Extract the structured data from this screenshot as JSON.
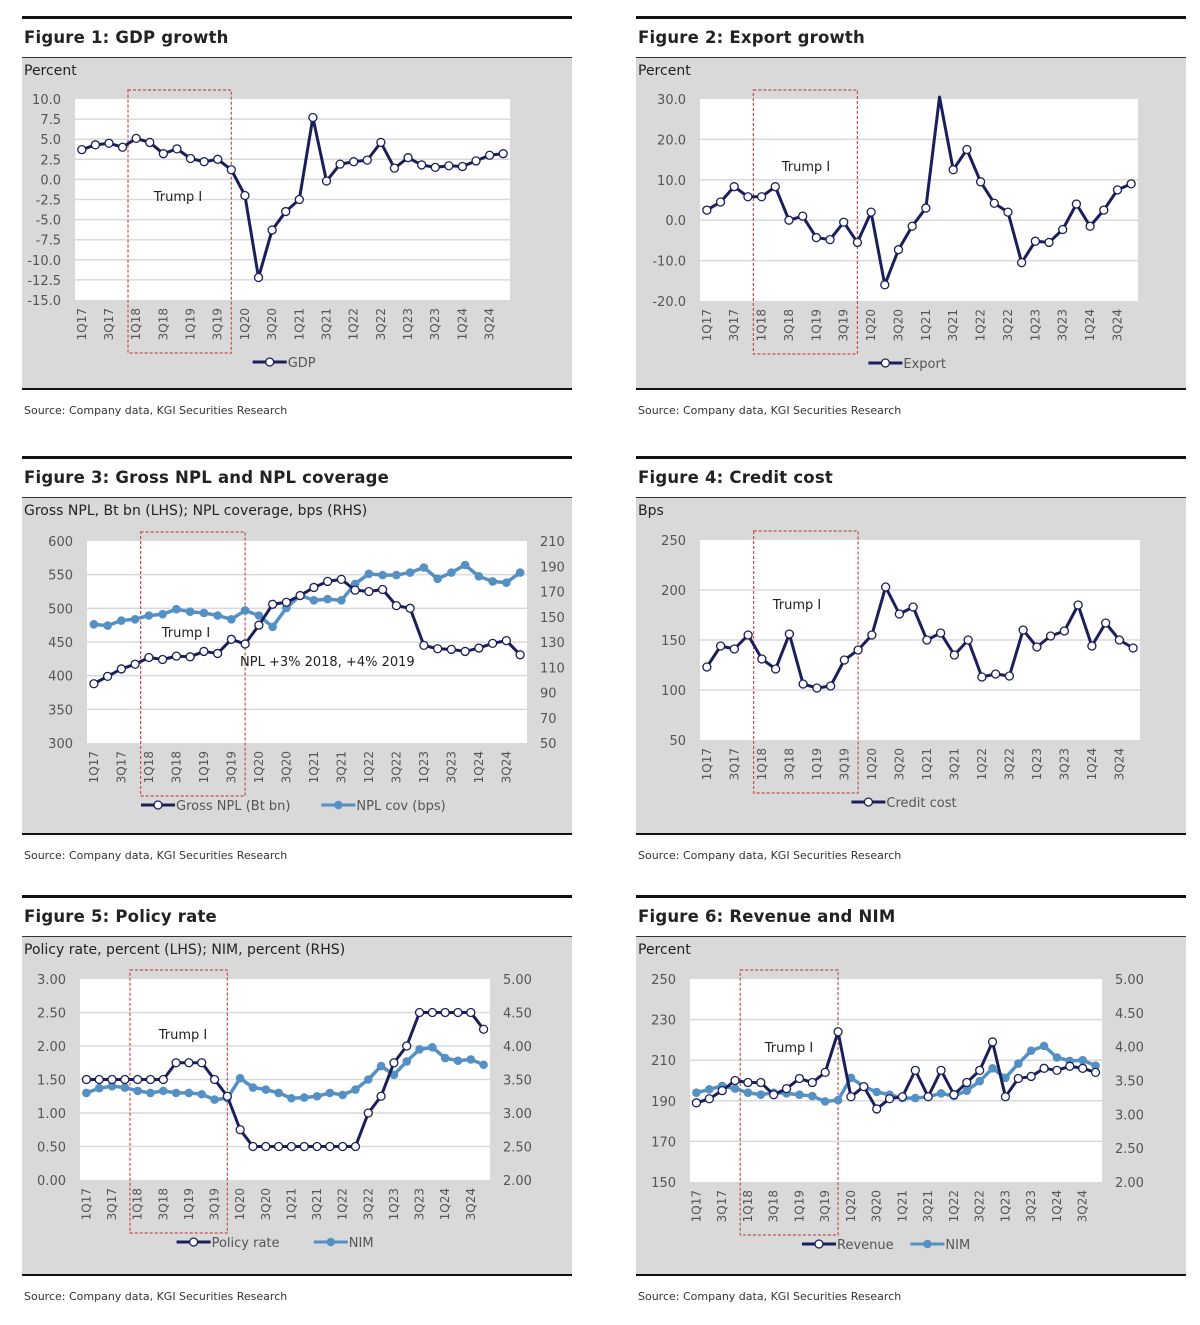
{
  "source_text": "Source: Company data, KGI Securities Research",
  "colors": {
    "navy": "#1a1f5a",
    "blue": "#5590c4",
    "panel_bg": "#d9d9d9",
    "trump_box": "#c0504d"
  },
  "chart_data": [
    {
      "type": "line",
      "title": "Figure 1: GDP growth",
      "unit_label": "Percent",
      "categories": [
        "1Q17",
        "2Q17",
        "3Q17",
        "4Q17",
        "1Q18",
        "2Q18",
        "3Q18",
        "4Q18",
        "1Q19",
        "2Q19",
        "3Q19",
        "4Q19",
        "1Q20",
        "2Q20",
        "3Q20",
        "4Q20",
        "1Q21",
        "2Q21",
        "3Q21",
        "4Q21",
        "1Q22",
        "2Q22",
        "3Q22",
        "4Q22",
        "1Q23",
        "2Q23",
        "3Q23",
        "4Q23",
        "1Q24",
        "2Q24",
        "3Q24",
        "4Q24"
      ],
      "x_tick_labels": [
        "1Q17",
        "3Q17",
        "1Q18",
        "3Q18",
        "1Q19",
        "3Q19",
        "1Q20",
        "3Q20",
        "1Q21",
        "3Q21",
        "1Q22",
        "3Q22",
        "1Q23",
        "3Q23",
        "1Q24",
        "3Q24"
      ],
      "y_left": {
        "range": [
          -15,
          10
        ],
        "tick_labels": [
          "-15.0",
          "-12.5",
          "-10.0",
          "-7.5",
          "-5.0",
          "-2.5",
          "0.0",
          "2.5",
          "5.0",
          "7.5",
          "10.0"
        ]
      },
      "series": [
        {
          "name": "GDP",
          "axis": "left",
          "style": "navy",
          "values": [
            3.7,
            4.3,
            4.5,
            4.0,
            5.1,
            4.6,
            3.2,
            3.8,
            2.6,
            2.2,
            2.5,
            1.2,
            -2.0,
            -12.2,
            -6.3,
            -4.0,
            -2.5,
            7.7,
            -0.2,
            1.9,
            2.2,
            2.4,
            4.6,
            1.4,
            2.7,
            1.8,
            1.5,
            1.7,
            1.6,
            2.3,
            3.0,
            3.2
          ]
        }
      ],
      "highlight": {
        "label": "Trump I",
        "from": "1Q18",
        "to": "4Q19"
      },
      "annotations": [],
      "grid": true,
      "legend": "bottom"
    },
    {
      "type": "line",
      "title": "Figure 2: Export growth",
      "unit_label": "Percent",
      "categories": [
        "1Q17",
        "2Q17",
        "3Q17",
        "4Q17",
        "1Q18",
        "2Q18",
        "3Q18",
        "4Q18",
        "1Q19",
        "2Q19",
        "3Q19",
        "4Q19",
        "1Q20",
        "2Q20",
        "3Q20",
        "4Q20",
        "1Q21",
        "2Q21",
        "3Q21",
        "4Q21",
        "1Q22",
        "2Q22",
        "3Q22",
        "4Q22",
        "1Q23",
        "2Q23",
        "3Q23",
        "4Q23",
        "1Q24",
        "2Q24",
        "3Q24",
        "4Q24"
      ],
      "x_tick_labels": [
        "1Q17",
        "3Q17",
        "1Q18",
        "3Q18",
        "1Q19",
        "3Q19",
        "1Q20",
        "3Q20",
        "1Q21",
        "3Q21",
        "1Q22",
        "3Q22",
        "1Q23",
        "3Q23",
        "1Q24",
        "3Q24"
      ],
      "y_left": {
        "range": [
          -20,
          30
        ],
        "tick_labels": [
          "-20.0",
          "-10.0",
          "0.0",
          "10.0",
          "20.0",
          "30.0"
        ]
      },
      "series": [
        {
          "name": "Export",
          "axis": "left",
          "style": "navy",
          "values": [
            2.5,
            4.5,
            8.3,
            5.8,
            5.8,
            8.3,
            0.0,
            1.0,
            -4.3,
            -4.8,
            -0.5,
            -5.5,
            2.0,
            -16.0,
            -7.3,
            -1.5,
            3.0,
            30.5,
            12.5,
            17.5,
            9.5,
            4.2,
            2.0,
            -10.5,
            -5.2,
            -5.5,
            -2.3,
            4.0,
            -1.5,
            2.5,
            7.5,
            9.0
          ]
        }
      ],
      "highlight": {
        "label": "Trump I",
        "from": "1Q18",
        "to": "4Q19"
      },
      "annotations": [],
      "grid": true,
      "legend": "bottom"
    },
    {
      "type": "line",
      "title": "Figure 3: Gross NPL and NPL coverage",
      "unit_label": "Gross NPL, Bt bn (LHS); NPL coverage, bps (RHS)",
      "categories": [
        "1Q17",
        "2Q17",
        "3Q17",
        "4Q17",
        "1Q18",
        "2Q18",
        "3Q18",
        "4Q18",
        "1Q19",
        "2Q19",
        "3Q19",
        "4Q19",
        "1Q20",
        "2Q20",
        "3Q20",
        "4Q20",
        "1Q21",
        "2Q21",
        "3Q21",
        "4Q21",
        "1Q22",
        "2Q22",
        "3Q22",
        "4Q22",
        "1Q23",
        "2Q23",
        "3Q23",
        "4Q23",
        "1Q24",
        "2Q24",
        "3Q24",
        "4Q24"
      ],
      "x_tick_labels": [
        "1Q17",
        "3Q17",
        "1Q18",
        "3Q18",
        "1Q19",
        "3Q19",
        "1Q20",
        "3Q20",
        "1Q21",
        "3Q21",
        "1Q22",
        "3Q22",
        "1Q23",
        "3Q23",
        "1Q24",
        "3Q24"
      ],
      "y_left": {
        "range": [
          300,
          600
        ],
        "tick_labels": [
          "300",
          "350",
          "400",
          "450",
          "500",
          "550",
          "600"
        ]
      },
      "y_right": {
        "range": [
          50,
          210
        ],
        "tick_labels": [
          "50",
          "70",
          "90",
          "110",
          "130",
          "150",
          "170",
          "190",
          "210"
        ]
      },
      "series": [
        {
          "name": "Gross NPL (Bt bn)",
          "axis": "left",
          "style": "navy",
          "values": [
            388,
            399,
            410,
            417,
            427,
            424,
            429,
            428,
            436,
            433,
            454,
            447,
            475,
            506,
            509,
            519,
            531,
            540,
            543,
            527,
            525,
            528,
            504,
            500,
            445,
            440,
            439,
            436,
            441,
            448,
            452,
            431
          ]
        },
        {
          "name": "NPL cov (bps)",
          "axis": "right",
          "style": "blue",
          "values": [
            144,
            143,
            147,
            148,
            151,
            152,
            156,
            154,
            153,
            151,
            148,
            155,
            151,
            142,
            157,
            167,
            163,
            164,
            163,
            176,
            184,
            183,
            183,
            185,
            189,
            180,
            185,
            191,
            182,
            178,
            177,
            185
          ]
        }
      ],
      "highlight": {
        "label": "Trump I",
        "from": "1Q18",
        "to": "4Q19"
      },
      "annotations": [
        "NPL +3% 2018, +4% 2019"
      ],
      "grid": true,
      "legend": "bottom"
    },
    {
      "type": "line",
      "title": "Figure 4: Credit cost",
      "unit_label": "Bps",
      "categories": [
        "1Q17",
        "2Q17",
        "3Q17",
        "4Q17",
        "1Q18",
        "2Q18",
        "3Q18",
        "4Q18",
        "1Q19",
        "2Q19",
        "3Q19",
        "4Q19",
        "1Q20",
        "2Q20",
        "3Q20",
        "4Q20",
        "1Q21",
        "2Q21",
        "3Q21",
        "4Q21",
        "1Q22",
        "2Q22",
        "3Q22",
        "4Q22",
        "1Q23",
        "2Q23",
        "3Q23",
        "4Q23",
        "1Q24",
        "2Q24",
        "3Q24",
        "4Q24"
      ],
      "x_tick_labels": [
        "1Q17",
        "3Q17",
        "1Q18",
        "3Q18",
        "1Q19",
        "3Q19",
        "1Q20",
        "3Q20",
        "1Q21",
        "3Q21",
        "1Q22",
        "3Q22",
        "1Q23",
        "3Q23",
        "1Q24",
        "3Q24"
      ],
      "y_left": {
        "range": [
          50,
          250
        ],
        "tick_labels": [
          "50",
          "100",
          "150",
          "200",
          "250"
        ]
      },
      "series": [
        {
          "name": "Credit cost",
          "axis": "left",
          "style": "navy",
          "values": [
            123,
            144,
            141,
            155,
            131,
            121,
            156,
            106,
            102,
            104,
            130,
            140,
            155,
            203,
            176,
            183,
            150,
            157,
            135,
            150,
            113,
            116,
            114,
            160,
            143,
            154,
            159,
            185,
            144,
            167,
            150,
            142
          ]
        }
      ],
      "highlight": {
        "label": "Trump I",
        "from": "1Q18",
        "to": "4Q19"
      },
      "annotations": [],
      "grid": true,
      "legend": "bottom"
    },
    {
      "type": "line",
      "title": "Figure 5: Policy rate",
      "unit_label": "Policy rate, percent (LHS); NIM, percent (RHS)",
      "categories": [
        "1Q17",
        "2Q17",
        "3Q17",
        "4Q17",
        "1Q18",
        "2Q18",
        "3Q18",
        "4Q18",
        "1Q19",
        "2Q19",
        "3Q19",
        "4Q19",
        "1Q20",
        "2Q20",
        "3Q20",
        "4Q20",
        "1Q21",
        "2Q21",
        "3Q21",
        "4Q21",
        "1Q22",
        "2Q22",
        "3Q22",
        "4Q22",
        "1Q23",
        "2Q23",
        "3Q23",
        "4Q23",
        "1Q24",
        "2Q24",
        "3Q24",
        "4Q24"
      ],
      "x_tick_labels": [
        "1Q17",
        "3Q17",
        "1Q18",
        "3Q18",
        "1Q19",
        "3Q19",
        "1Q20",
        "3Q20",
        "1Q21",
        "3Q21",
        "1Q22",
        "3Q22",
        "1Q23",
        "3Q23",
        "1Q24",
        "3Q24"
      ],
      "y_left": {
        "range": [
          0,
          3
        ],
        "tick_labels": [
          "0.00",
          "0.50",
          "1.00",
          "1.50",
          "2.00",
          "2.50",
          "3.00"
        ]
      },
      "y_right": {
        "range": [
          2,
          5
        ],
        "tick_labels": [
          "2.00",
          "2.50",
          "3.00",
          "3.50",
          "4.00",
          "4.50",
          "5.00"
        ]
      },
      "series": [
        {
          "name": "Policy rate",
          "axis": "left",
          "style": "navy",
          "values": [
            1.5,
            1.5,
            1.5,
            1.5,
            1.5,
            1.5,
            1.5,
            1.75,
            1.75,
            1.75,
            1.5,
            1.25,
            0.75,
            0.5,
            0.5,
            0.5,
            0.5,
            0.5,
            0.5,
            0.5,
            0.5,
            0.5,
            1.0,
            1.25,
            1.75,
            2.0,
            2.5,
            2.5,
            2.5,
            2.5,
            2.5,
            2.25
          ]
        },
        {
          "name": "NIM",
          "axis": "right",
          "style": "blue",
          "values": [
            3.3,
            3.37,
            3.4,
            3.38,
            3.33,
            3.3,
            3.33,
            3.3,
            3.3,
            3.28,
            3.2,
            3.22,
            3.52,
            3.38,
            3.35,
            3.3,
            3.22,
            3.23,
            3.25,
            3.3,
            3.27,
            3.35,
            3.5,
            3.7,
            3.57,
            3.77,
            3.95,
            3.98,
            3.82,
            3.78,
            3.8,
            3.72
          ]
        }
      ],
      "highlight": {
        "label": "Trump I",
        "from": "1Q18",
        "to": "4Q19"
      },
      "annotations": [],
      "grid": true,
      "legend": "bottom"
    },
    {
      "type": "line",
      "title": "Figure 6: Revenue and NIM",
      "unit_label": "Percent",
      "categories": [
        "1Q17",
        "2Q17",
        "3Q17",
        "4Q17",
        "1Q18",
        "2Q18",
        "3Q18",
        "4Q18",
        "1Q19",
        "2Q19",
        "3Q19",
        "4Q19",
        "1Q20",
        "2Q20",
        "3Q20",
        "4Q20",
        "1Q21",
        "2Q21",
        "3Q21",
        "4Q21",
        "1Q22",
        "2Q22",
        "3Q22",
        "4Q22",
        "1Q23",
        "2Q23",
        "3Q23",
        "4Q23",
        "1Q24",
        "2Q24",
        "3Q24",
        "4Q24"
      ],
      "x_tick_labels": [
        "1Q17",
        "3Q17",
        "1Q18",
        "3Q18",
        "1Q19",
        "3Q19",
        "1Q20",
        "3Q20",
        "1Q21",
        "3Q21",
        "1Q22",
        "3Q22",
        "1Q23",
        "3Q23",
        "1Q24",
        "3Q24"
      ],
      "y_left": {
        "range": [
          150,
          250
        ],
        "tick_labels": [
          "150",
          "170",
          "190",
          "210",
          "230",
          "250"
        ]
      },
      "y_right": {
        "range": [
          2,
          5
        ],
        "tick_labels": [
          "2.00",
          "2.50",
          "3.00",
          "3.50",
          "4.00",
          "4.50",
          "5.00"
        ]
      },
      "series": [
        {
          "name": "Revenue",
          "axis": "left",
          "style": "navy",
          "values": [
            189,
            191,
            195,
            200,
            199,
            199,
            193,
            196,
            201,
            199,
            204,
            224,
            192,
            197,
            186,
            191,
            192,
            205,
            192,
            205,
            193,
            199,
            205,
            219,
            192,
            201,
            202,
            206,
            205,
            207,
            206,
            204
          ]
        },
        {
          "name": "NIM",
          "axis": "right",
          "style": "blue",
          "values": [
            3.32,
            3.37,
            3.42,
            3.38,
            3.32,
            3.29,
            3.32,
            3.31,
            3.29,
            3.27,
            3.19,
            3.21,
            3.54,
            3.41,
            3.33,
            3.29,
            3.24,
            3.24,
            3.26,
            3.31,
            3.27,
            3.35,
            3.49,
            3.68,
            3.54,
            3.75,
            3.94,
            4.01,
            3.84,
            3.79,
            3.8,
            3.72
          ]
        }
      ],
      "highlight": {
        "label": "Trump I",
        "from": "1Q18",
        "to": "4Q19"
      },
      "annotations": [],
      "grid": true,
      "legend": "bottom"
    }
  ]
}
